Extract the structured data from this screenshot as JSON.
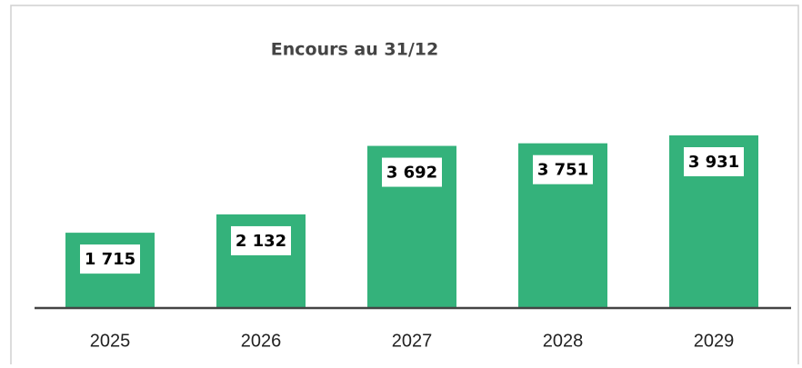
{
  "chart_data": {
    "type": "bar",
    "title": "Encours au 31/12",
    "categories": [
      "2025",
      "2026",
      "2027",
      "2028",
      "2029"
    ],
    "values": [
      1715,
      2132,
      3692,
      3751,
      3931
    ],
    "value_labels": [
      "1 715",
      "2 132",
      "3 692",
      "3 751",
      "3 931"
    ],
    "color": "#34b27b"
  }
}
